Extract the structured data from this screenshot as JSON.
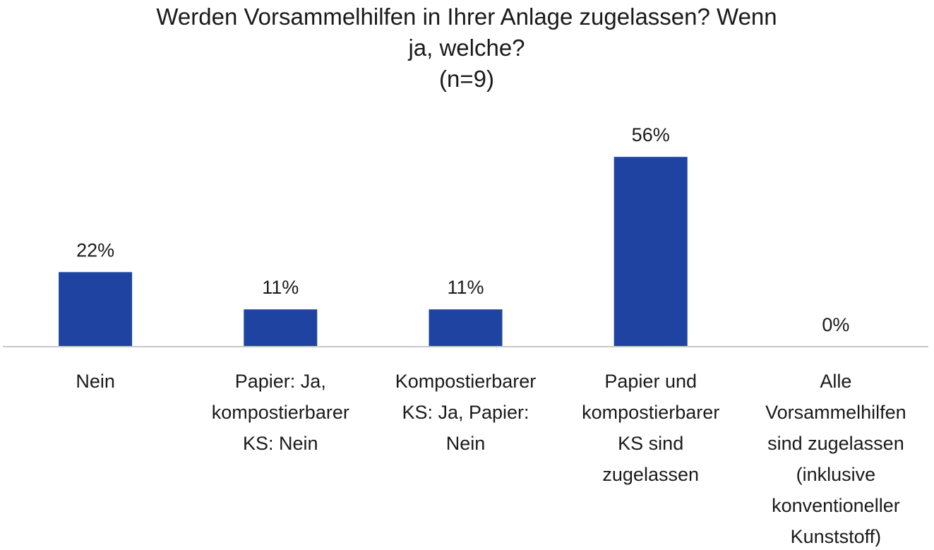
{
  "chart_data": {
    "type": "bar",
    "title_lines": [
      "Werden Vorsammelhilfen  in Ihrer Anlage zugelassen? Wenn",
      "ja, welche?",
      "(n=9)"
    ],
    "categories": [
      [
        "Nein"
      ],
      [
        "Papier: Ja,",
        "kompostierbarer",
        "KS: Nein"
      ],
      [
        "Kompostierbarer",
        "KS: Ja, Papier:",
        "Nein"
      ],
      [
        "Papier und",
        "kompostierbarer",
        "KS sind",
        "zugelassen"
      ],
      [
        "Alle",
        "Vorsammelhilfen",
        "sind zugelassen",
        "(inklusive",
        "konventioneller",
        "Kunststoff)"
      ]
    ],
    "values": [
      22,
      11,
      11,
      56,
      0
    ],
    "data_labels": [
      "22%",
      "11%",
      "11%",
      "56%",
      "0%"
    ],
    "unit": "%",
    "ylim": [
      0,
      60
    ],
    "grid": false,
    "legend": "none",
    "colors": {
      "bar": "#1f43a0",
      "axis": "#c8c8c8",
      "text": "#1a1a1a"
    }
  }
}
